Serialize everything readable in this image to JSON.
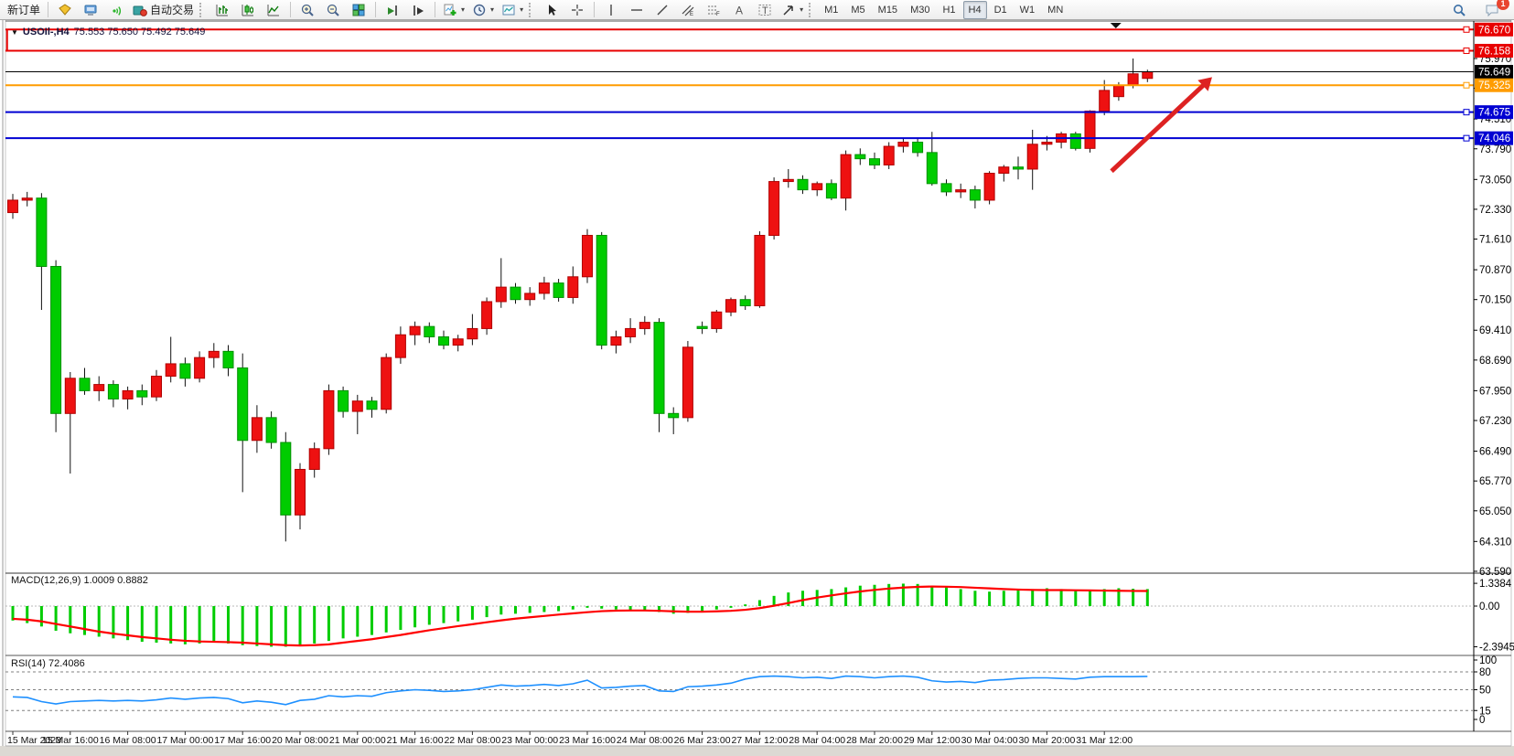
{
  "toolbar": {
    "new_order_label": "新订单",
    "autotrading_label": "自动交易",
    "timeframes": [
      "M1",
      "M5",
      "M15",
      "M30",
      "H1",
      "H4",
      "D1",
      "W1",
      "MN"
    ],
    "active_timeframe": "H4",
    "notification_count": "1",
    "icon_names": [
      "market-watch-icon",
      "terminal-icon",
      "signals-icon",
      "autotrading-icon",
      "bar-chart-icon",
      "candlestick-chart-icon",
      "line-chart-icon",
      "zoom-in-icon",
      "zoom-out-icon",
      "tile-windows-icon",
      "auto-scroll-icon",
      "chart-shift-icon",
      "add-indicator-icon",
      "period-clock-icon",
      "template-icon",
      "cursor-icon",
      "crosshair-icon",
      "vertical-line-icon",
      "horizontal-line-icon",
      "trendline-icon",
      "channel-icon",
      "fibonacci-icon",
      "text-icon",
      "label-icon",
      "arrows-icon",
      "search-icon",
      "chat-icon"
    ]
  },
  "chart": {
    "symbol_period": "USOIl-,H4",
    "ohlc": "75.553 75.650 75.492 75.649"
  },
  "chart_data": {
    "type": "candlestick",
    "symbol": "USOIl-",
    "timeframe": "H4",
    "ohlc_display": {
      "open": 75.553,
      "high": 75.65,
      "low": 75.492,
      "close": 75.649
    },
    "current_price": "75.649",
    "price_axis": {
      "ticks": [
        "75.970",
        "75.250",
        "74.510",
        "73.790",
        "73.050",
        "72.330",
        "71.610",
        "70.870",
        "70.150",
        "69.410",
        "68.690",
        "67.950",
        "67.230",
        "66.490",
        "65.770",
        "65.050",
        "64.310",
        "63.590"
      ],
      "tick_values": [
        75.97,
        75.25,
        74.51,
        73.79,
        73.05,
        72.33,
        71.61,
        70.87,
        70.15,
        69.41,
        68.69,
        67.95,
        67.23,
        66.49,
        65.77,
        65.05,
        64.31,
        63.59
      ],
      "step": 0.72,
      "top_value": 75.97
    },
    "time_labels": [
      "15 Mar 2023",
      "15 Mar 16:00",
      "16 Mar 08:00",
      "17 Mar 00:00",
      "17 Mar 16:00",
      "20 Mar 08:00",
      "21 Mar 00:00",
      "21 Mar 16:00",
      "22 Mar 08:00",
      "23 Mar 00:00",
      "23 Mar 16:00",
      "24 Mar 08:00",
      "26 Mar 23:00",
      "27 Mar 12:00",
      "28 Mar 04:00",
      "28 Mar 20:00",
      "29 Mar 12:00",
      "30 Mar 04:00",
      "30 Mar 20:00",
      "31 Mar 12:00"
    ],
    "bars_per_label": 4,
    "candles": [
      [
        72.25,
        72.7,
        72.1,
        72.55
      ],
      [
        72.55,
        72.75,
        72.4,
        72.6
      ],
      [
        72.6,
        72.72,
        69.9,
        70.95
      ],
      [
        70.95,
        71.1,
        66.95,
        67.4
      ],
      [
        67.4,
        68.4,
        65.95,
        68.25
      ],
      [
        68.25,
        68.5,
        67.85,
        67.95
      ],
      [
        67.95,
        68.3,
        67.7,
        68.1
      ],
      [
        68.1,
        68.2,
        67.55,
        67.75
      ],
      [
        67.75,
        68.05,
        67.5,
        67.95
      ],
      [
        67.95,
        68.1,
        67.6,
        67.8
      ],
      [
        67.8,
        68.45,
        67.7,
        68.3
      ],
      [
        68.3,
        69.25,
        68.15,
        68.6
      ],
      [
        68.6,
        68.75,
        68.05,
        68.25
      ],
      [
        68.25,
        68.9,
        68.15,
        68.75
      ],
      [
        68.75,
        69.1,
        68.5,
        68.9
      ],
      [
        68.9,
        69.05,
        68.3,
        68.5
      ],
      [
        68.5,
        68.85,
        65.5,
        66.75
      ],
      [
        66.75,
        67.6,
        66.45,
        67.3
      ],
      [
        67.3,
        67.45,
        66.55,
        66.7
      ],
      [
        66.7,
        66.95,
        64.31,
        64.95
      ],
      [
        64.95,
        66.2,
        64.6,
        66.05
      ],
      [
        66.05,
        66.7,
        65.85,
        66.55
      ],
      [
        66.55,
        68.1,
        66.4,
        67.95
      ],
      [
        67.95,
        68.05,
        67.3,
        67.45
      ],
      [
        67.45,
        67.85,
        66.9,
        67.7
      ],
      [
        67.7,
        67.8,
        67.3,
        67.5
      ],
      [
        67.5,
        68.85,
        67.4,
        68.75
      ],
      [
        68.75,
        69.5,
        68.6,
        69.3
      ],
      [
        69.3,
        69.62,
        69.05,
        69.5
      ],
      [
        69.5,
        69.6,
        69.1,
        69.25
      ],
      [
        69.25,
        69.4,
        68.95,
        69.05
      ],
      [
        69.05,
        69.3,
        68.9,
        69.2
      ],
      [
        69.2,
        69.8,
        69.05,
        69.45
      ],
      [
        69.45,
        70.2,
        69.3,
        70.1
      ],
      [
        70.1,
        71.15,
        69.95,
        70.45
      ],
      [
        70.45,
        70.55,
        70.05,
        70.15
      ],
      [
        70.15,
        70.45,
        70.0,
        70.3
      ],
      [
        70.3,
        70.7,
        70.15,
        70.55
      ],
      [
        70.55,
        70.65,
        70.1,
        70.2
      ],
      [
        70.2,
        70.95,
        70.05,
        70.7
      ],
      [
        70.7,
        71.85,
        70.55,
        71.7
      ],
      [
        71.7,
        71.78,
        68.95,
        69.05
      ],
      [
        69.05,
        69.4,
        68.85,
        69.25
      ],
      [
        69.25,
        69.7,
        69.1,
        69.45
      ],
      [
        69.45,
        69.75,
        69.3,
        69.6
      ],
      [
        69.6,
        69.7,
        66.95,
        67.4
      ],
      [
        67.4,
        67.55,
        66.9,
        67.3
      ],
      [
        67.3,
        69.15,
        67.2,
        69.0
      ],
      [
        69.5,
        69.62,
        69.32,
        69.45
      ],
      [
        69.45,
        69.9,
        69.35,
        69.85
      ],
      [
        69.85,
        70.2,
        69.75,
        70.15
      ],
      [
        70.15,
        70.25,
        69.9,
        70.0
      ],
      [
        70.0,
        71.8,
        69.95,
        71.7
      ],
      [
        71.7,
        73.1,
        71.6,
        73.0
      ],
      [
        73.0,
        73.3,
        72.85,
        73.05
      ],
      [
        73.05,
        73.15,
        72.7,
        72.8
      ],
      [
        72.8,
        73.0,
        72.65,
        72.95
      ],
      [
        72.95,
        73.05,
        72.55,
        72.6
      ],
      [
        72.6,
        73.75,
        72.3,
        73.65
      ],
      [
        73.65,
        73.8,
        73.4,
        73.55
      ],
      [
        73.55,
        73.7,
        73.3,
        73.4
      ],
      [
        73.4,
        73.95,
        73.3,
        73.85
      ],
      [
        73.85,
        74.05,
        73.7,
        73.95
      ],
      [
        73.95,
        74.05,
        73.6,
        73.7
      ],
      [
        73.7,
        74.2,
        72.9,
        72.95
      ],
      [
        72.95,
        73.05,
        72.65,
        72.75
      ],
      [
        72.75,
        72.95,
        72.6,
        72.8
      ],
      [
        72.8,
        72.9,
        72.35,
        72.55
      ],
      [
        72.55,
        73.25,
        72.45,
        73.2
      ],
      [
        73.2,
        73.4,
        73.0,
        73.35
      ],
      [
        73.35,
        73.6,
        73.05,
        73.3
      ],
      [
        73.3,
        74.25,
        72.8,
        73.9
      ],
      [
        73.9,
        74.1,
        73.75,
        73.95
      ],
      [
        73.95,
        74.2,
        73.8,
        74.15
      ],
      [
        74.15,
        74.2,
        73.75,
        73.8
      ],
      [
        73.8,
        74.72,
        73.7,
        74.7
      ],
      [
        74.7,
        75.45,
        74.6,
        75.2
      ],
      [
        75.05,
        75.4,
        74.95,
        75.33
      ],
      [
        75.33,
        75.97,
        75.25,
        75.6
      ],
      [
        75.49,
        75.7,
        75.4,
        75.649
      ]
    ],
    "hlines": [
      {
        "label": "76.670",
        "price": 76.67,
        "color": "#e80000",
        "style": "line"
      },
      {
        "label": "76.158",
        "price": 76.158,
        "color": "#e80000",
        "style": "line"
      },
      {
        "label": "75.649",
        "price": 75.649,
        "color": "#000000",
        "style": "current-price"
      },
      {
        "label": "75.325",
        "price": 75.325,
        "color": "#ff9c00",
        "style": "line"
      },
      {
        "label": "74.675",
        "price": 74.675,
        "color": "#0000d2",
        "style": "line"
      },
      {
        "label": "74.046",
        "price": 74.046,
        "color": "#0000d2",
        "style": "line"
      }
    ],
    "annotations": {
      "arrow": {
        "from_bar": 76.5,
        "from_price": 73.25,
        "to_bar": 83.5,
        "to_price": 75.52,
        "color": "#dd2222"
      },
      "rectangle_left_edge": {
        "bar": -0.4,
        "top_price": 76.67,
        "bottom_price": 76.158,
        "color": "#e80000"
      },
      "shift_marker_bar": 76.8
    },
    "indicators": {
      "macd": {
        "label": "MACD(12,26,9) 1.0009 0.8882",
        "params": "12,26,9",
        "value": 1.0009,
        "signal_value": 0.8882,
        "scale_ticks": [
          "1.3384",
          "0.00",
          "-2.3945"
        ],
        "scale_values": [
          1.3384,
          0,
          -2.3945
        ],
        "histogram": [
          -0.85,
          -1.0,
          -1.2,
          -1.45,
          -1.6,
          -1.7,
          -1.8,
          -1.9,
          -2.0,
          -2.1,
          -2.15,
          -2.2,
          -2.25,
          -2.2,
          -2.15,
          -2.2,
          -2.3,
          -2.35,
          -2.39,
          -2.39,
          -2.3,
          -2.2,
          -2.05,
          -1.9,
          -1.8,
          -1.7,
          -1.55,
          -1.4,
          -1.25,
          -1.1,
          -1.0,
          -0.9,
          -0.8,
          -0.65,
          -0.5,
          -0.45,
          -0.4,
          -0.35,
          -0.3,
          -0.2,
          -0.1,
          -0.15,
          -0.2,
          -0.25,
          -0.25,
          -0.35,
          -0.45,
          -0.4,
          -0.3,
          -0.2,
          -0.1,
          0.1,
          0.35,
          0.6,
          0.8,
          0.9,
          0.95,
          1.0,
          1.1,
          1.2,
          1.25,
          1.3,
          1.32,
          1.3,
          1.2,
          1.1,
          1.0,
          0.9,
          0.85,
          0.9,
          0.95,
          1.0,
          1.05,
          1.0,
          0.95,
          0.95,
          1.0,
          1.05,
          1.02,
          1.0009
        ],
        "signal": [
          -0.75,
          -0.8,
          -0.9,
          -1.05,
          -1.2,
          -1.35,
          -1.5,
          -1.62,
          -1.72,
          -1.82,
          -1.9,
          -1.98,
          -2.04,
          -2.08,
          -2.1,
          -2.12,
          -2.15,
          -2.2,
          -2.25,
          -2.3,
          -2.32,
          -2.3,
          -2.25,
          -2.15,
          -2.05,
          -1.95,
          -1.82,
          -1.7,
          -1.56,
          -1.42,
          -1.3,
          -1.18,
          -1.07,
          -0.95,
          -0.84,
          -0.74,
          -0.66,
          -0.58,
          -0.5,
          -0.43,
          -0.36,
          -0.3,
          -0.27,
          -0.26,
          -0.26,
          -0.28,
          -0.31,
          -0.33,
          -0.33,
          -0.31,
          -0.28,
          -0.22,
          -0.12,
          0.02,
          0.18,
          0.35,
          0.5,
          0.63,
          0.75,
          0.86,
          0.95,
          1.03,
          1.09,
          1.13,
          1.15,
          1.14,
          1.12,
          1.08,
          1.04,
          1.0,
          0.97,
          0.95,
          0.94,
          0.94,
          0.93,
          0.92,
          0.91,
          0.9,
          0.89,
          0.8882
        ]
      },
      "rsi": {
        "label": "RSI(14) 72.4086",
        "period": 14,
        "value": 72.4086,
        "scale_ticks": [
          "100",
          "80",
          "50",
          "15",
          "0"
        ],
        "scale_values": [
          100,
          80,
          50,
          15,
          0
        ],
        "levels": [
          80,
          50,
          15
        ],
        "values": [
          38,
          37,
          30,
          26,
          30,
          31,
          32,
          31,
          32,
          31,
          33,
          36,
          34,
          36,
          37,
          35,
          28,
          31,
          29,
          25,
          32,
          34,
          40,
          38,
          40,
          39,
          45,
          48,
          50,
          49,
          47,
          48,
          50,
          54,
          58,
          56,
          57,
          59,
          57,
          60,
          66,
          53,
          54,
          56,
          57,
          48,
          47,
          55,
          56,
          58,
          61,
          68,
          72,
          73,
          72,
          70,
          71,
          69,
          73,
          72,
          70,
          72,
          73,
          71,
          65,
          63,
          64,
          62,
          66,
          67,
          69,
          70,
          70,
          69,
          68,
          71,
          72,
          72,
          72,
          72.41
        ]
      }
    }
  },
  "colors": {
    "up_candle": "#ee1111",
    "down_candle": "#00cc00",
    "wick": "#111111",
    "macd_hist": "#00cc00",
    "macd_signal": "#ff0000",
    "rsi_line": "#1e90ff",
    "badge_text": "#ffffff",
    "axis_text": "#000000"
  }
}
